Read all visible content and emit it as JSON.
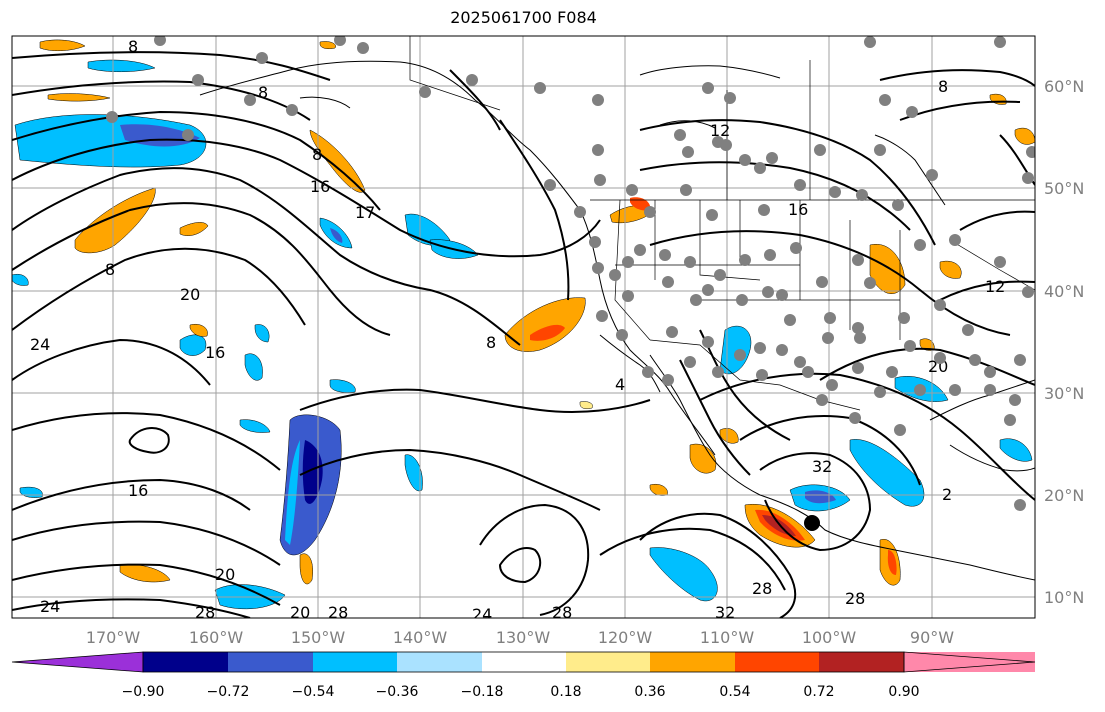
{
  "title": "2025061700 F084",
  "colors": {
    "neg_090_less": "#9b30d9",
    "neg_090_072": "#00008b",
    "neg_072_054": "#3a5acd",
    "neg_054_036": "#00bfff",
    "neg_036_018": "#aae2ff",
    "neutral": "#ffffff",
    "pos_018_036": "#ffec8b",
    "pos_036_054": "#ffa500",
    "pos_054_072": "#ff4500",
    "pos_072_090": "#b22222",
    "pos_090_more": "#ff88aa",
    "contour": "#000000",
    "grid": "#a0a0a0",
    "coast": "#000000",
    "station": "#808080"
  },
  "map": {
    "longitude_labels": [
      "170°W",
      "160°W",
      "150°W",
      "140°W",
      "130°W",
      "120°W",
      "110°W",
      "100°W",
      "90°W"
    ],
    "latitude_labels": [
      "60°N",
      "50°N",
      "40°N",
      "30°N",
      "20°N",
      "10°N"
    ],
    "contour_labels": [
      "8",
      "8",
      "8",
      "12",
      "16",
      "16",
      "16",
      "16",
      "17",
      "20",
      "20",
      "20",
      "24",
      "24",
      "24",
      "28",
      "28",
      "28",
      "28",
      "32",
      "32",
      "8",
      "8",
      "8",
      "4",
      "12",
      "2",
      "20",
      "28"
    ]
  },
  "colorbar": {
    "ticks": [
      "−0.90",
      "−0.72",
      "−0.54",
      "−0.36",
      "−0.18",
      "0.18",
      "0.36",
      "0.54",
      "0.72",
      "0.90"
    ]
  }
}
